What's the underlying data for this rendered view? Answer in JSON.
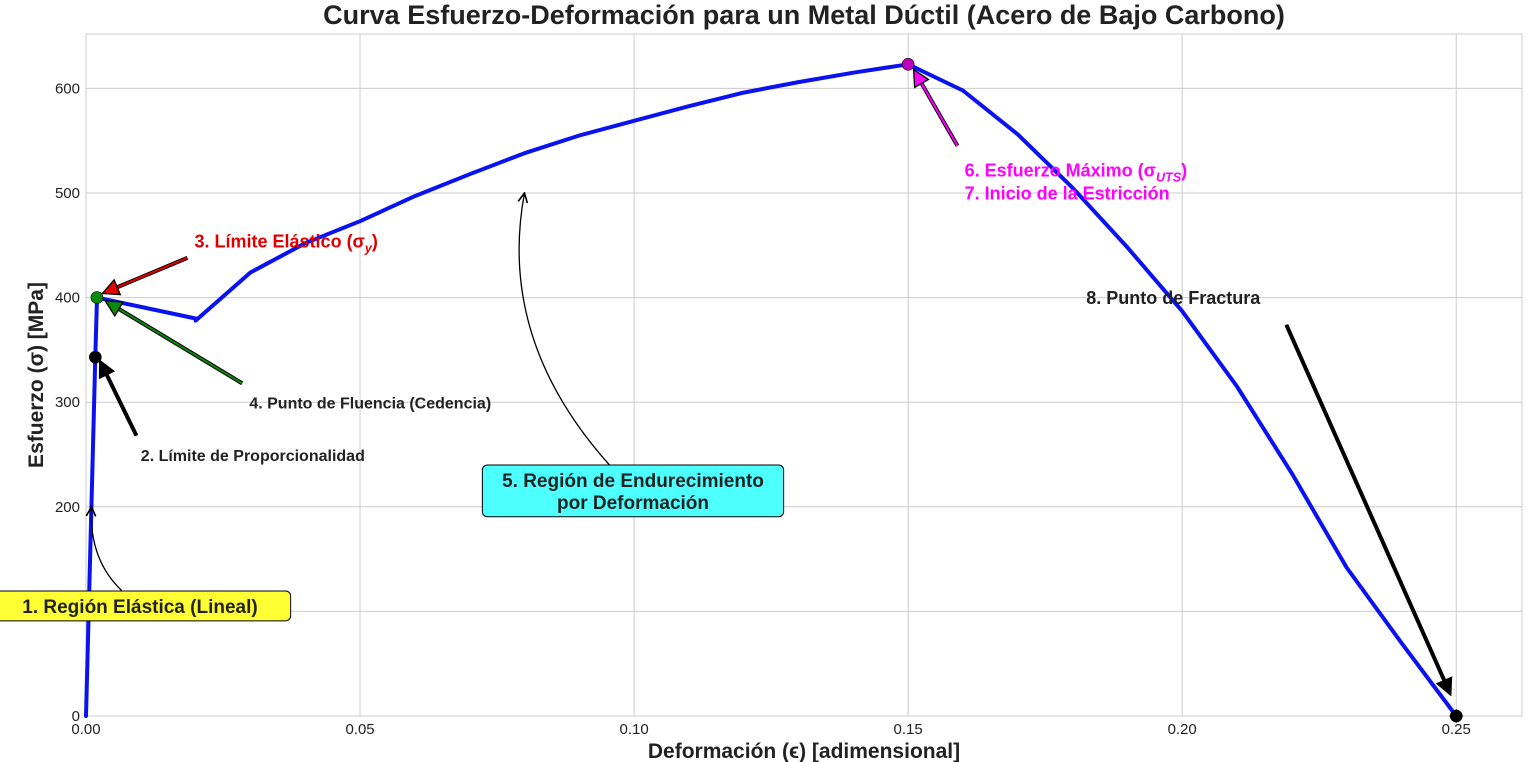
{
  "chart_data": {
    "type": "line",
    "title": "Curva Esfuerzo-Deformación para un Metal Dúctil (Acero de Bajo Carbono)",
    "xlabel": "Deformación (ϵ) [adimensional]",
    "ylabel": "Esfuerzo (σ) [MPa]",
    "xlim": [
      0.0,
      0.262
    ],
    "ylim": [
      0,
      652
    ],
    "xticks": [
      0.0,
      0.05,
      0.1,
      0.15,
      0.2,
      0.25
    ],
    "xtick_labels": [
      "0.00",
      "0.05",
      "0.10",
      "0.15",
      "0.20",
      "0.25"
    ],
    "yticks": [
      0,
      100,
      200,
      300,
      400,
      500,
      600
    ],
    "ytick_labels": [
      "0",
      "100",
      "200",
      "300",
      "400",
      "500",
      "600"
    ],
    "grid": true,
    "series": [
      {
        "color": "#0a12f0",
        "x": [
          0.0,
          0.0017,
          0.002,
          0.02,
          0.02,
          0.03,
          0.04,
          0.05,
          0.06,
          0.07,
          0.08,
          0.09,
          0.1,
          0.11,
          0.12,
          0.13,
          0.14,
          0.15,
          0.16,
          0.17,
          0.18,
          0.19,
          0.2,
          0.21,
          0.22,
          0.23,
          0.24,
          0.25
        ],
        "y": [
          0,
          343,
          400,
          380,
          378,
          424,
          452,
          473,
          497,
          518,
          538,
          555,
          569,
          583,
          596,
          606,
          615,
          623,
          598,
          556,
          505,
          448,
          387,
          315,
          232,
          142,
          70,
          0
        ]
      }
    ],
    "key_points": [
      {
        "x": 0.0017,
        "y": 343,
        "color": "#000000"
      },
      {
        "x": 0.002,
        "y": 400,
        "color": "#0a8a0a"
      },
      {
        "x": 0.15,
        "y": 623,
        "color": "#c000c0"
      },
      {
        "x": 0.25,
        "y": 0,
        "color": "#000000"
      }
    ],
    "annotations": {
      "elastic": {
        "text": "1. Región Elástica (Lineal)",
        "bg": "#ffff33",
        "x": 0.0,
        "y": 100
      },
      "proportional": {
        "text": "2. Límite de Proporcionalidad",
        "x": 0.01,
        "y": 250
      },
      "yield": {
        "text_main": "3. Límite Elástico (σ",
        "text_sub": "y",
        "text_end": ")",
        "color": "#e00000",
        "x": 0.02,
        "y": 445
      },
      "fluencia": {
        "text": "4. Punto de Fluencia (Cedencia)",
        "x": 0.03,
        "y": 300
      },
      "hardening": {
        "line1": "5. Región de Endurecimiento",
        "line2": "por Deformación",
        "bg": "#4dffff",
        "x": 0.1,
        "y": 216
      },
      "uts": {
        "text_main": "6. Esfuerzo Máximo (σ",
        "text_sub": "UTS",
        "text_end": ")",
        "line2": "7. Inicio de la Estricción",
        "color": "#ff00ff",
        "x": 0.16,
        "y": 520
      },
      "fracture": {
        "text": "8. Punto de Fractura",
        "x": 0.2,
        "y": 404
      }
    }
  }
}
